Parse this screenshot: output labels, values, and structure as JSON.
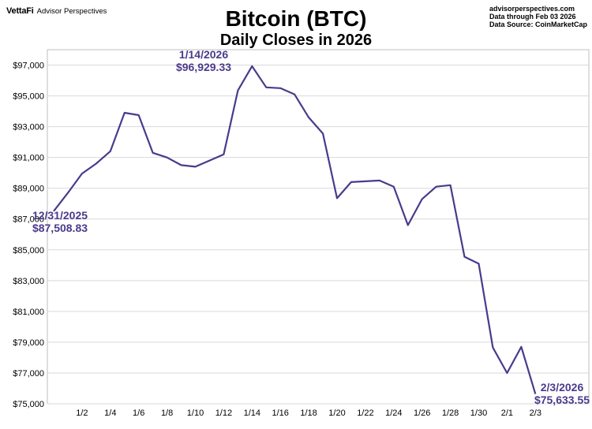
{
  "header": {
    "logo": "VettaFi",
    "org": "Advisor Perspectives",
    "meta_lines": [
      "advisorperspectives.com",
      "Data through Feb 03 2026",
      "Data Source: CoinMarketCap"
    ]
  },
  "colors": {
    "line": "#4b3a8c",
    "annotation": "#4b3a8c",
    "grid": "#d9d9d9"
  },
  "chart_data": {
    "type": "line",
    "title": "Bitcoin (BTC)",
    "subtitle": "Daily Closes in 2026",
    "xlabel": "",
    "ylabel": "",
    "ylim": [
      75000,
      98000
    ],
    "y_ticks": [
      "$75,000",
      "$77,000",
      "$79,000",
      "$81,000",
      "$83,000",
      "$85,000",
      "$87,000",
      "$89,000",
      "$91,000",
      "$93,000",
      "$95,000",
      "$97,000"
    ],
    "y_tick_values": [
      75000,
      77000,
      79000,
      81000,
      83000,
      85000,
      87000,
      89000,
      91000,
      93000,
      95000,
      97000
    ],
    "x_tick_labels": [
      "1/2",
      "1/4",
      "1/6",
      "1/8",
      "1/10",
      "1/12",
      "1/14",
      "1/16",
      "1/18",
      "1/20",
      "1/22",
      "1/24",
      "1/26",
      "1/28",
      "1/30",
      "2/1",
      "2/3"
    ],
    "x_tick_dates": [
      "2026-01-02",
      "2026-01-04",
      "2026-01-06",
      "2026-01-08",
      "2026-01-10",
      "2026-01-12",
      "2026-01-14",
      "2026-01-16",
      "2026-01-18",
      "2026-01-20",
      "2026-01-22",
      "2026-01-24",
      "2026-01-26",
      "2026-01-28",
      "2026-01-30",
      "2026-02-01",
      "2026-02-03"
    ],
    "grid": true,
    "legend": "none",
    "series": [
      {
        "x": [
          "2025-12-31",
          "2026-01-01",
          "2026-01-02",
          "2026-01-03",
          "2026-01-04",
          "2026-01-05",
          "2026-01-06",
          "2026-01-07",
          "2026-01-08",
          "2026-01-09",
          "2026-01-10",
          "2026-01-11",
          "2026-01-12",
          "2026-01-13",
          "2026-01-14",
          "2026-01-15",
          "2026-01-16",
          "2026-01-17",
          "2026-01-18",
          "2026-01-19",
          "2026-01-20",
          "2026-01-21",
          "2026-01-22",
          "2026-01-23",
          "2026-01-24",
          "2026-01-25",
          "2026-01-26",
          "2026-01-27",
          "2026-01-28",
          "2026-01-29",
          "2026-01-30",
          "2026-01-31",
          "2026-02-01",
          "2026-02-02",
          "2026-02-03"
        ],
        "values": [
          87508.83,
          88700,
          89950,
          90600,
          91400,
          93900,
          93750,
          91300,
          91000,
          90500,
          90400,
          90800,
          91200,
          95350,
          96929.33,
          95550,
          95500,
          95100,
          93600,
          92550,
          88350,
          89400,
          89450,
          89500,
          89100,
          86600,
          88300,
          89100,
          89200,
          84550,
          84100,
          78650,
          77000,
          78700,
          75633.55
        ]
      }
    ],
    "annotations": [
      {
        "date_label": "12/31/2025",
        "value_label": "$87,508.83"
      },
      {
        "date_label": "1/14/2026",
        "value_label": "$96,929.33"
      },
      {
        "date_label": "2/3/2026",
        "value_label": "$75,633.55"
      }
    ]
  }
}
